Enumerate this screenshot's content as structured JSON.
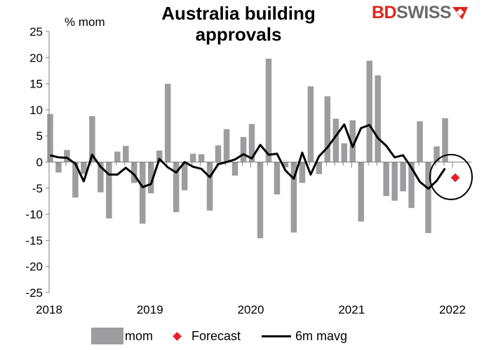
{
  "header": {
    "title": "Australia building approvals",
    "logo_bd": "BD",
    "logo_swiss": "SWISS"
  },
  "colors": {
    "bar": "#9d9d9f",
    "line": "#000000",
    "forecast": "#e8202a",
    "logo_red": "#e2231a",
    "logo_gray": "#6b6b6b"
  },
  "chart_data": {
    "type": "bar",
    "title": "Australia building approvals",
    "ylabel": "% mom",
    "xlabel": "",
    "ylim": [
      -25,
      25
    ],
    "yticks": [
      25,
      20,
      15,
      10,
      5,
      0,
      -5,
      -10,
      -15,
      -20,
      -25
    ],
    "xticks": [
      "2018",
      "2019",
      "2020",
      "2021",
      "2022"
    ],
    "grid": false,
    "legend_position": "bottom",
    "x_months": [
      "2018-01",
      "2018-02",
      "2018-03",
      "2018-04",
      "2018-05",
      "2018-06",
      "2018-07",
      "2018-08",
      "2018-09",
      "2018-10",
      "2018-11",
      "2018-12",
      "2019-01",
      "2019-02",
      "2019-03",
      "2019-04",
      "2019-05",
      "2019-06",
      "2019-07",
      "2019-08",
      "2019-09",
      "2019-10",
      "2019-11",
      "2019-12",
      "2020-01",
      "2020-02",
      "2020-03",
      "2020-04",
      "2020-05",
      "2020-06",
      "2020-07",
      "2020-08",
      "2020-09",
      "2020-10",
      "2020-11",
      "2020-12",
      "2021-01",
      "2021-02",
      "2021-03",
      "2021-04",
      "2021-05",
      "2021-06",
      "2021-07",
      "2021-08",
      "2021-09",
      "2021-10",
      "2021-11",
      "2021-12"
    ],
    "series": [
      {
        "name": "mom",
        "kind": "bar",
        "values": [
          9.2,
          -2,
          2.3,
          -6.8,
          -2.3,
          8.8,
          -5.8,
          -10.8,
          2,
          3.1,
          -4,
          -11.8,
          -6,
          2.2,
          15,
          -9.6,
          -5.4,
          1.6,
          1.5,
          -9.3,
          3.2,
          6.3,
          -2.6,
          4.8,
          7.3,
          -14.6,
          19.8,
          -6.2,
          -1,
          -13.5,
          -4,
          14.5,
          -2.3,
          12.6,
          8.3,
          3.6,
          8,
          -11.4,
          19.4,
          16.6,
          -6.5,
          -7.4,
          -5.6,
          -8.8,
          7.8,
          -13.6,
          3,
          8.4
        ]
      },
      {
        "name": "6m mavg",
        "kind": "line",
        "values": [
          1.3,
          0.9,
          0.8,
          -0.3,
          -3.7,
          1.4,
          -0.9,
          -2.4,
          -2.4,
          -1.1,
          -2.4,
          -4.8,
          -4.2,
          0.6,
          -1,
          -2,
          0,
          -0.9,
          -1.3,
          -2.9,
          -0.4,
          0,
          0.5,
          1.5,
          0.7,
          3.3,
          1.4,
          1.6,
          -1.6,
          -3.2,
          1.8,
          -2.4,
          1.1,
          2.8,
          5,
          7.2,
          2.9,
          6.5,
          7.1,
          4.6,
          3.1,
          0.9,
          1.3,
          -1.1,
          -3.8,
          -5.1,
          -3.6,
          -1.2
        ]
      },
      {
        "name": "Forecast",
        "kind": "point",
        "x": "2022-01",
        "y": -3
      }
    ]
  }
}
